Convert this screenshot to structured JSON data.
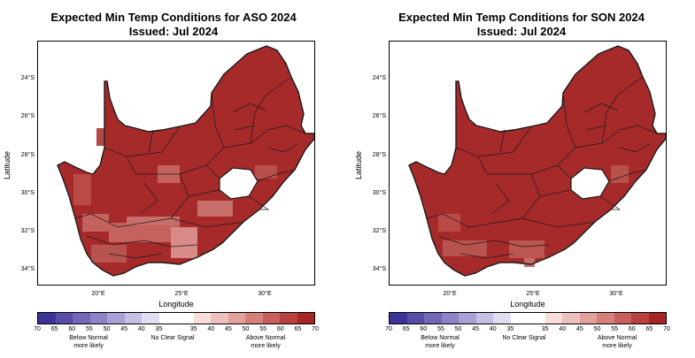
{
  "colors": {
    "ocean": "#ffffff",
    "land_main": "#a72a2a",
    "land_light": "#c4625e",
    "land_lighter": "#d88a86",
    "boundary": "#1a1a1a",
    "lesotho": "#ffffff"
  },
  "colorbar": {
    "colors": [
      "#3b3395",
      "#564ca8",
      "#7266b8",
      "#8c84c6",
      "#a7a2d6",
      "#c4c1e5",
      "#e0def2",
      "#ffffff",
      "#ffffff",
      "#f7dedd",
      "#edc0bd",
      "#e2a09c",
      "#d5807b",
      "#c7605b",
      "#b8413d",
      "#a52424"
    ],
    "labels": [
      "70",
      "65",
      "60",
      "55",
      "50",
      "45",
      "40",
      "35",
      "35",
      "40",
      "45",
      "50",
      "55",
      "60",
      "65",
      "70"
    ],
    "below": "Below Normal\nmore likely",
    "neutral": "No Clear Signal",
    "above": "Above Normal\nmore likely"
  },
  "panels": [
    {
      "title1": "Expected Min Temp Conditions for ASO 2024",
      "title2": "Issued: Jul 2024",
      "ylabel": "Latitude",
      "xlabel": "Longitude",
      "yticks": [
        "24°S",
        "26°S",
        "28°S",
        "30°S",
        "32°S",
        "34°S"
      ],
      "xticks": [
        "20°E",
        "25°E",
        "30°E"
      ]
    },
    {
      "title1": "Expected Min Temp Conditions for SON 2024",
      "title2": "Issued: Jul 2024",
      "ylabel": "Latitude",
      "xlabel": "Longitude",
      "yticks": [
        "24°S",
        "26°S",
        "28°S",
        "30°S",
        "32°S",
        "34°S"
      ],
      "xticks": [
        "20°E",
        "25°E",
        "30°E"
      ]
    }
  ]
}
